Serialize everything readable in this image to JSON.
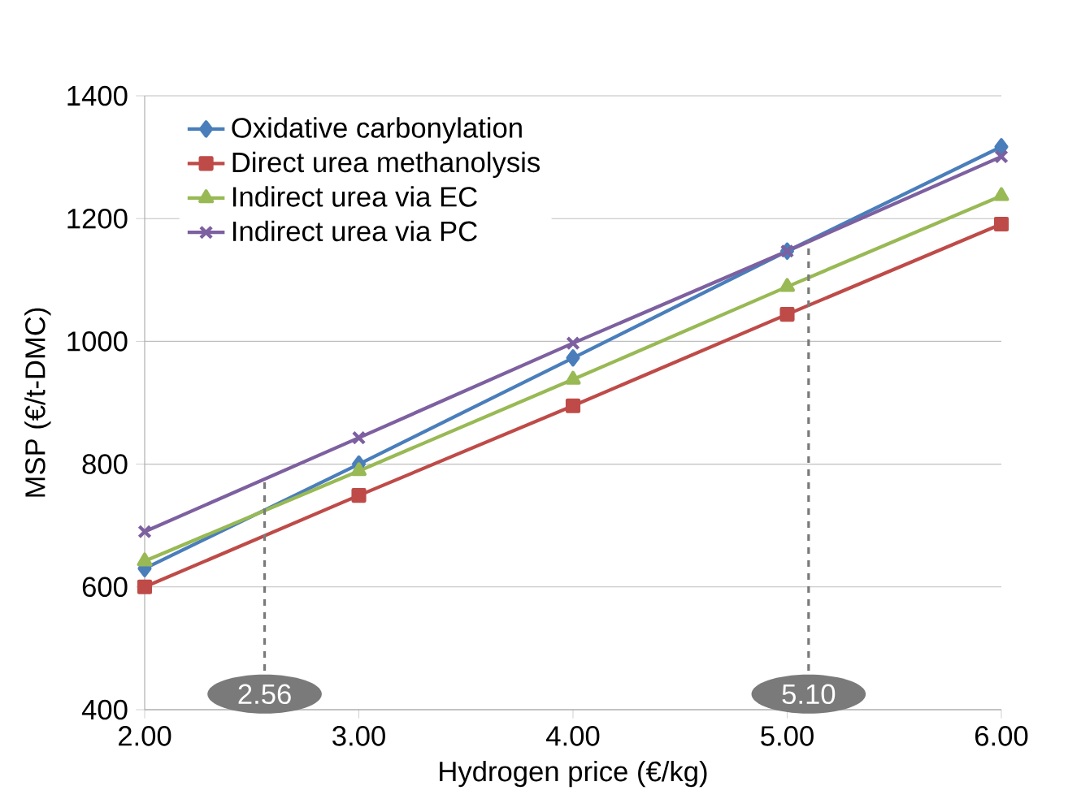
{
  "chart_data": {
    "type": "line",
    "xlabel": "Hydrogen price (€/kg)",
    "ylabel": "MSP (€/t-DMC)",
    "x": [
      2,
      3,
      4,
      5,
      6
    ],
    "series": [
      {
        "name": "Oxidative carbonylation",
        "color": "#4a7ebb",
        "marker": "diamond",
        "values": [
          630,
          800,
          973,
          1147,
          1317
        ]
      },
      {
        "name": "Direct urea methanolysis",
        "color": "#be4b48",
        "marker": "square",
        "values": [
          600,
          749,
          895,
          1044,
          1191
        ]
      },
      {
        "name": "Indirect urea via EC",
        "color": "#98b954",
        "marker": "triangle",
        "values": [
          642,
          789,
          938,
          1089,
          1237
        ]
      },
      {
        "name": "Indirect urea via PC",
        "color": "#7d60a0",
        "marker": "cross",
        "values": [
          690,
          843,
          997,
          1147,
          1301
        ]
      }
    ],
    "xlim": [
      2,
      6
    ],
    "ylim": [
      400,
      1400
    ],
    "xticks": [
      {
        "value": 2,
        "label": "2.00"
      },
      {
        "value": 3,
        "label": "3.00"
      },
      {
        "value": 4,
        "label": "4.00"
      },
      {
        "value": 5,
        "label": "5.00"
      },
      {
        "value": 6,
        "label": "6.00"
      }
    ],
    "yticks": [
      400,
      600,
      800,
      1000,
      1200,
      1400
    ],
    "grid": "y",
    "legend": "top left",
    "line_style": "solid",
    "ref_lines": [
      {
        "axis": "x",
        "value": 2.56,
        "label": "2.56",
        "color": "#7a7a7a",
        "line_style": "dashed"
      },
      {
        "axis": "x",
        "value": 5.1,
        "label": "5.10",
        "color": "#7a7a7a",
        "line_style": "dashed"
      }
    ]
  }
}
